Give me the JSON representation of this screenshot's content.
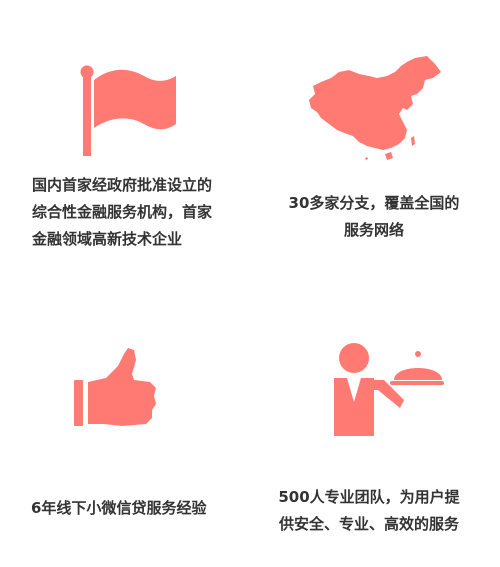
{
  "colors": {
    "accent": "#ff7a72",
    "text": "#333333",
    "background": "#ffffff"
  },
  "features": [
    {
      "icon": "flag-icon",
      "lines": [
        "国内首家经政府批准设立的",
        "综合性金融服务机构，首家",
        "金融领域高新技术企业"
      ]
    },
    {
      "icon": "china-map-icon",
      "lines": [
        "30多家分支，覆盖全国的",
        "服务网络"
      ]
    },
    {
      "icon": "thumbs-up-icon",
      "lines": [
        "6年线下小微信贷服务经验"
      ]
    },
    {
      "icon": "waiter-service-icon",
      "lines": [
        "500人专业团队，为用户提",
        "供安全、专业、高效的服务"
      ]
    }
  ]
}
